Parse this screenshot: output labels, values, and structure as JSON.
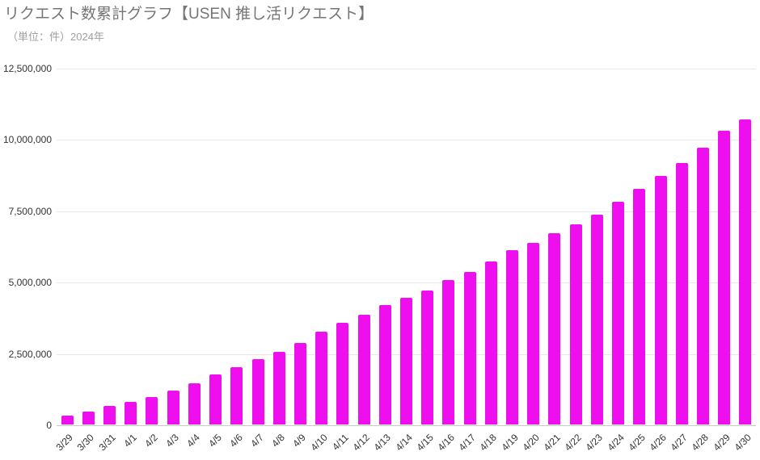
{
  "chart_data": {
    "type": "bar",
    "title": "リクエスト数累計グラフ【USEN 推し活リクエスト】",
    "subtitle": "（単位：件）2024年",
    "categories": [
      "3/29",
      "3/30",
      "3/31",
      "4/1",
      "4/2",
      "4/3",
      "4/4",
      "4/5",
      "4/6",
      "4/7",
      "4/8",
      "4/9",
      "4/10",
      "4/11",
      "4/12",
      "4/13",
      "4/14",
      "4/15",
      "4/16",
      "4/17",
      "4/18",
      "4/19",
      "4/20",
      "4/21",
      "4/22",
      "4/23",
      "4/24",
      "4/25",
      "4/26",
      "4/27",
      "4/28",
      "4/29",
      "4/30"
    ],
    "values": [
      300000,
      450000,
      650000,
      800000,
      950000,
      1200000,
      1450000,
      1750000,
      2000000,
      2300000,
      2550000,
      2850000,
      3250000,
      3550000,
      3850000,
      4200000,
      4450000,
      4700000,
      5050000,
      5350000,
      5700000,
      6100000,
      6350000,
      6700000,
      7000000,
      7350000,
      7800000,
      8250000,
      8700000,
      9150000,
      9700000,
      10300000,
      10700000
    ],
    "xlabel": "",
    "ylabel": "",
    "ylim": [
      0,
      12500000
    ],
    "ytick_interval": 2500000,
    "ytick_labels": [
      "0",
      "2,500,000",
      "5,000,000",
      "7,500,000",
      "10,000,000",
      "12,500,000"
    ],
    "grid": true,
    "legend": "none",
    "colors": {
      "bar": "#ee0eee",
      "title": "#757575",
      "subtitle": "#9e9e9e",
      "axis_text": "#333333",
      "gridline": "#e8e8e8",
      "axis_line": "#c8c8c8",
      "background": "#ffffff"
    }
  }
}
